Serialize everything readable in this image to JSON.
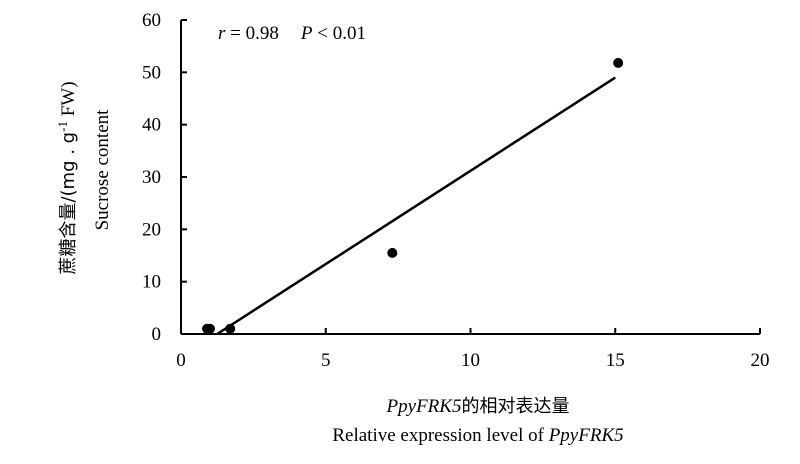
{
  "chart_data": {
    "type": "scatter",
    "title": "",
    "xlabel": {
      "line1_italic": "PpyFRK5",
      "line1_cn": "的相对表达量",
      "line2_prefix": "Relative expression level of ",
      "line2_italic": "PpyFRK5"
    },
    "ylabel": {
      "cn": "蔗糖含量/(mg . g",
      "sup": "-1",
      "unit_tail": " FW)",
      "en": "Sucrose content"
    },
    "xlim": [
      0,
      20
    ],
    "ylim": [
      0,
      60
    ],
    "xticks": [
      0,
      5,
      10,
      15,
      20
    ],
    "yticks": [
      0,
      10,
      20,
      30,
      40,
      50,
      60
    ],
    "points": [
      {
        "x": 0.9,
        "y": 1.0
      },
      {
        "x": 1.0,
        "y": 1.0
      },
      {
        "x": 1.7,
        "y": 1.0
      },
      {
        "x": 7.3,
        "y": 15.5
      },
      {
        "x": 15.1,
        "y": 51.8
      }
    ],
    "trendline": {
      "x": [
        1.25,
        15.0
      ],
      "y": [
        0.0,
        49.0
      ]
    },
    "annotation": {
      "r_label": "r",
      "r_value": " = 0.98",
      "p_label": "P",
      "p_value": " < 0.01"
    },
    "grid": false,
    "legend": "none"
  }
}
